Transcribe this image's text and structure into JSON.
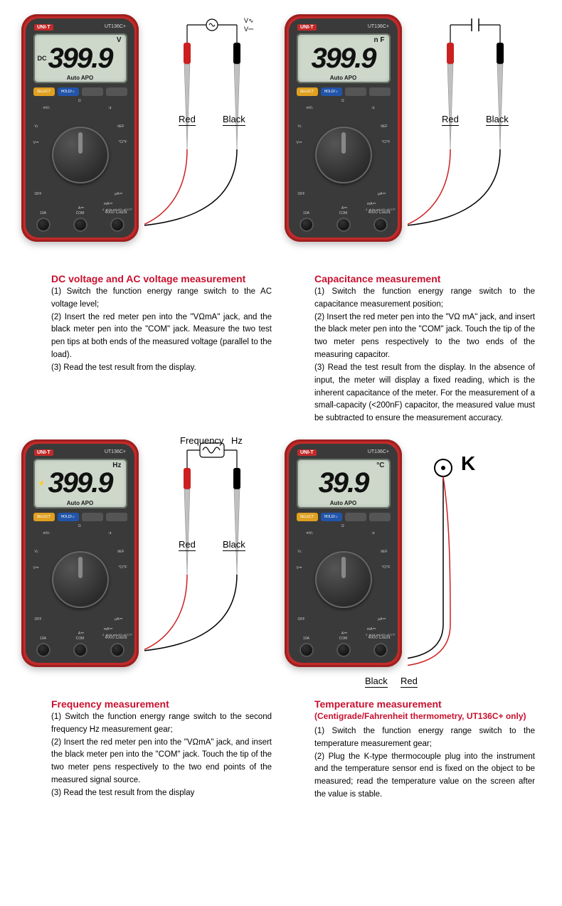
{
  "brand": "UNI-T",
  "model": "UT136C+",
  "lcd_sub": "Auto APO",
  "buttons": {
    "select": "SELECT",
    "hold": "HOLD/☼",
    "blank1": "",
    "blank2": ""
  },
  "count_label": "4000 Count",
  "jacks": {
    "left": "10A",
    "mid": "COM",
    "right": "⏚ ⇉ Hz mA\nVΩ μA°C°F"
  },
  "probe_labels": {
    "red": "Red",
    "black": "Black",
    "freq": "Frequency",
    "hz": "Hz",
    "k": "K"
  },
  "dial_labels": {
    "top": "Ω",
    "tr": "⇉",
    "r": "hEF",
    "rr": "°C/°F",
    "br": "μA⏛",
    "brr": "mA⏛",
    "b": "A⏛",
    "bl": "OFF",
    "l": "V⏛",
    "ll": "V⏓",
    "tl": "mV⏓"
  },
  "sections": [
    {
      "title": "DC voltage and AC voltage measurement",
      "subtitle": "",
      "lcd_unit": "V",
      "lcd_mode": "DC",
      "lcd_digits": "399.9",
      "diagram": "voltage",
      "steps": [
        "(1) Switch the function energy range switch to the AC voltage level;",
        "(2) Insert the red meter pen into the \"VΩmA\" jack, and the black meter pen into the \"COM\" jack. Measure the two test pen tips at both ends of the measured voltage (parallel to the load).",
        "(3) Read the test result from the display."
      ]
    },
    {
      "title": "Capacitance measurement",
      "subtitle": "",
      "lcd_unit": "n F",
      "lcd_mode": "",
      "lcd_digits": "399.9",
      "diagram": "capacitance",
      "steps": [
        "(1) Switch the function energy range switch to the capacitance measurement position;",
        "(2) Insert the red meter pen into the \"VΩ mA\" jack, and insert the black meter pen into the \"COM\" jack. Touch the tip of the two meter pens respectively to the two ends of the measuring capacitor.",
        "(3) Read the test result from the display. In the absence of input, the meter will display a fixed reading, which is the inherent capacitance of the meter. For the measurement of a small-capacity (<200nF) capacitor, the measured value must be subtracted to ensure the measurement accuracy."
      ]
    },
    {
      "title": "Frequency measurement",
      "subtitle": "",
      "lcd_unit": "Hz",
      "lcd_mode": "⚡",
      "lcd_digits": "399.9",
      "diagram": "frequency",
      "steps": [
        "(1) Switch the function energy range switch to the second frequency Hz measurement gear;",
        "(2) Insert the red meter pen into the \"VΩmA\" jack, and insert the black meter pen into the \"COM\" jack. Touch the tip of the two meter pens respectively to the two end points of the measured signal source.",
        "(3) Read the test result from the display"
      ]
    },
    {
      "title": "Temperature measurement",
      "subtitle": "(Centigrade/Fahrenheit thermometry, UT136C+ only)",
      "lcd_unit": "°C",
      "lcd_mode": "",
      "lcd_digits": "39.9",
      "diagram": "temperature",
      "steps": [
        "(1) Switch the function energy range switch to the temperature measurement gear;",
        "(2) Plug the K-type thermocouple plug into the instrument and the temperature sensor end is fixed on the object to be measured; read the temperature value on the screen after the value is stable."
      ]
    }
  ],
  "colors": {
    "brand_red": "#c8102e",
    "meter_red": "#c22a2a",
    "meter_dark": "#3a3a3a",
    "lcd_bg": "#cdd8cb",
    "probe_red": "#cc2020",
    "probe_black": "#000000"
  }
}
